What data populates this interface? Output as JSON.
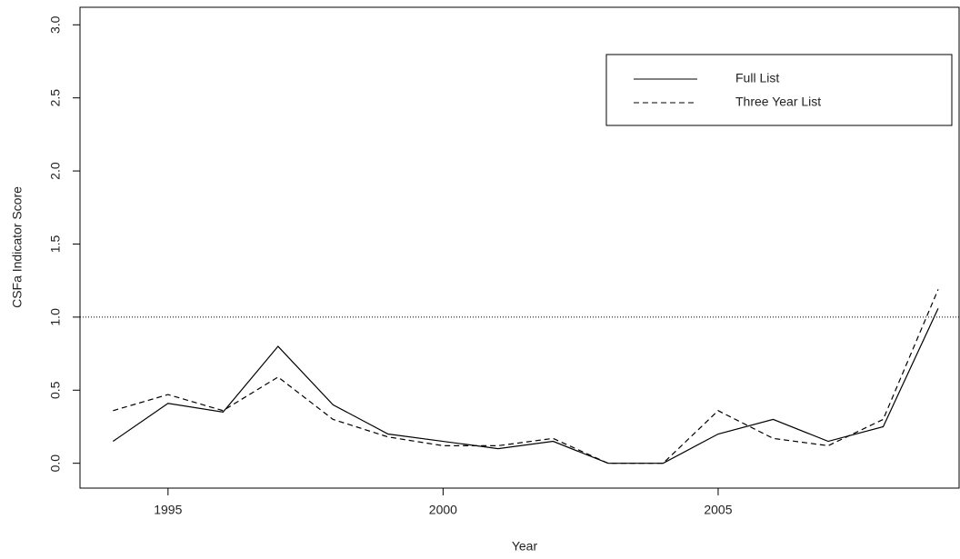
{
  "chart_data": {
    "type": "line",
    "x_label": "Year",
    "y_label": "CSFa Indicator Score",
    "x": [
      1994,
      1995,
      1996,
      1997,
      1998,
      1999,
      2000,
      2001,
      2002,
      2003,
      2004,
      2005,
      2006,
      2007,
      2008,
      2009
    ],
    "series": [
      {
        "name": "Full List",
        "color": "#000000",
        "dash": "solid",
        "values": [
          0.15,
          0.41,
          0.35,
          0.8,
          0.4,
          0.2,
          0.15,
          0.1,
          0.15,
          0,
          0,
          0.2,
          0.3,
          0.15,
          0.25,
          1.06
        ]
      },
      {
        "name": "Three Year List",
        "color": "#000000",
        "dash": "dashed",
        "values": [
          0.36,
          0.47,
          0.36,
          0.59,
          0.3,
          0.18,
          0.12,
          0.12,
          0.17,
          0,
          0,
          0.36,
          0.17,
          0.12,
          0.3,
          1.19
        ]
      }
    ],
    "hline": 1.0,
    "xlim": [
      1993.4,
      2009.38
    ],
    "xticks": [
      1995,
      2000,
      2005
    ],
    "ylim": [
      -0.17,
      3.12
    ],
    "yticks": [
      {
        "value": 0,
        "label": "0.0"
      },
      {
        "value": 0.5,
        "label": "0.5"
      },
      {
        "value": 1,
        "label": "1.0"
      },
      {
        "value": 1.5,
        "label": "1.5"
      },
      {
        "value": 2,
        "label": "2.0"
      },
      {
        "value": 2.5,
        "label": "2.5"
      },
      {
        "value": 3,
        "label": "3.0"
      }
    ],
    "legend": "top-right",
    "grid": false
  }
}
